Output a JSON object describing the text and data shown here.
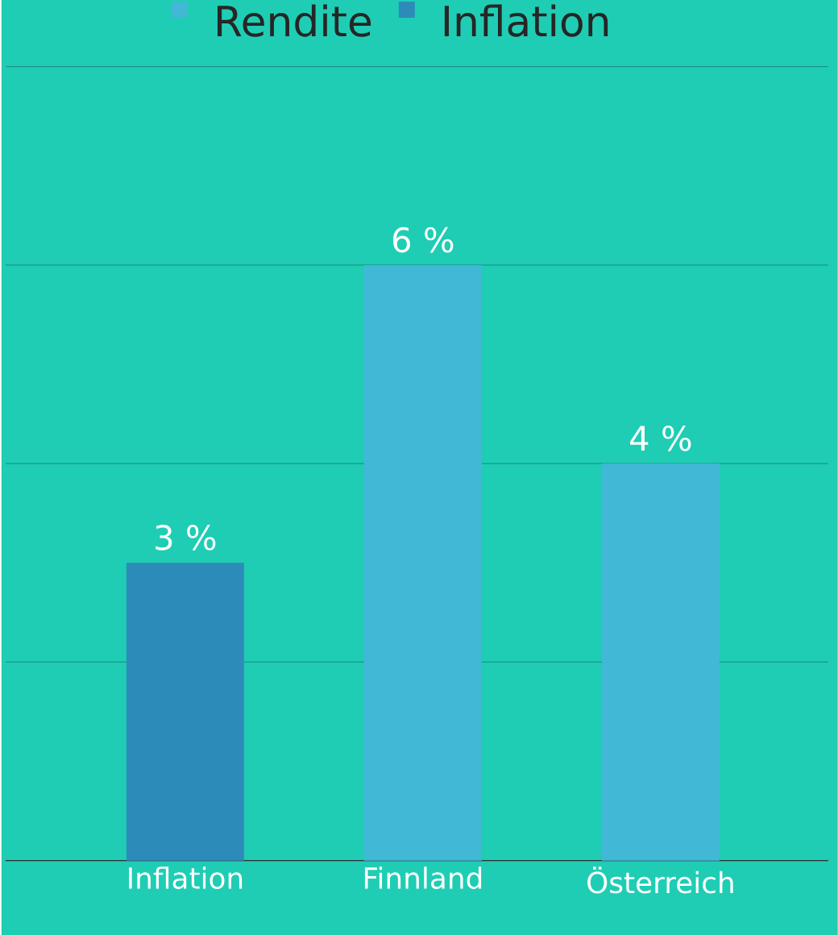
{
  "chart_data": {
    "type": "bar",
    "categories": [
      "Inflation",
      "Finnland",
      "Österreich"
    ],
    "series": [
      {
        "name": "Rendite",
        "color": "#41b8d5",
        "values": [
          null,
          6,
          4
        ],
        "value_labels": [
          null,
          "6 %",
          "4 %"
        ]
      },
      {
        "name": "Inflation",
        "color": "#2d8bba",
        "values": [
          3,
          null,
          null
        ],
        "value_labels": [
          "3 %",
          null,
          null
        ]
      }
    ],
    "ylim": [
      0,
      8
    ],
    "yticks": [
      {
        "value": 0,
        "label": null
      },
      {
        "value": 2,
        "label": null
      },
      {
        "value": 4,
        "label": null
      },
      {
        "value": 6,
        "label": null
      },
      {
        "value": 8,
        "label": null
      }
    ],
    "tick_labels": "x",
    "grid": "y",
    "legend": "top"
  }
}
